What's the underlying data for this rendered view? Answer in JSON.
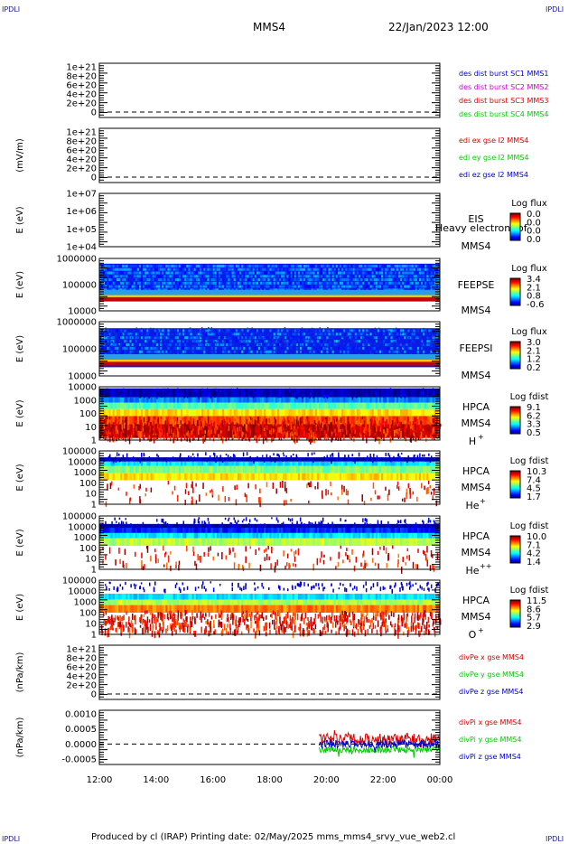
{
  "header": {
    "corner_label": "IPDLI",
    "spacecraft": "MMS4",
    "datetime": "22/Jan/2023 12:00"
  },
  "footer": {
    "text": "Produced by cl (IRAP)   Printing date: 02/May/2025   mms_mms4_srvy_vue_web2.cl"
  },
  "colors": {
    "red": "#dd0000",
    "green": "#00cc00",
    "blue": "#0000cc",
    "magenta": "#cc00cc"
  },
  "chart_data": [
    {
      "type": "line",
      "panel": "des-dist-burst",
      "ylabel": "",
      "yticks": [
        "1e+21",
        "8e+20",
        "6e+20",
        "4e+20",
        "2e+20",
        "0"
      ],
      "ylim": [
        -2e+20,
        1.1e+21
      ],
      "legend": [
        {
          "name": "des dist burst SC1 MMS1",
          "color": "#0000cc"
        },
        {
          "name": "des dist burst SC2 MMS2",
          "color": "#cc00cc"
        },
        {
          "name": "des dist burst SC3 MMS3",
          "color": "#dd0000"
        },
        {
          "name": "des dist burst SC4 MMS4",
          "color": "#00cc00"
        }
      ],
      "reference_line": 0,
      "series": []
    },
    {
      "type": "line",
      "panel": "edi-e-gse",
      "ylabel": "(mV/m)",
      "yticks": [
        "1e+21",
        "8e+20",
        "6e+20",
        "4e+20",
        "2e+20",
        "0"
      ],
      "ylim": [
        -2e+20,
        1.1e+21
      ],
      "legend": [
        {
          "name": "edi ex gse l2 MMS4",
          "color": "#dd0000"
        },
        {
          "name": "edi ey gse l2 MMS4",
          "color": "#00cc00"
        },
        {
          "name": "edi ez gse l2 MMS4",
          "color": "#0000cc"
        }
      ],
      "reference_line": 0,
      "series": []
    },
    {
      "type": "heatmap",
      "panel": "eis",
      "ylabel": "E (eV)",
      "yticks": [
        "1e+07",
        "1e+06",
        "1e+05",
        "1e+04"
      ],
      "scale": "log",
      "instrument": [
        "EIS",
        "MMS4"
      ],
      "overlay_text": "Heavy electron tof",
      "colorbar": {
        "title": "Log flux",
        "ticks": [
          "0.0",
          "0.0",
          "0.0",
          "0.0"
        ]
      },
      "fill": "none"
    },
    {
      "type": "heatmap",
      "panel": "feeps-e",
      "ylabel": "E (eV)",
      "yticks": [
        "1000000",
        "100000",
        "10000"
      ],
      "scale": "log",
      "instrument": [
        "FEEPSE",
        "MMS4"
      ],
      "colorbar": {
        "title": "Log flux",
        "ticks": [
          "3.4",
          "2.1",
          "0.8",
          "-0.6"
        ]
      },
      "fill": "feeps_e"
    },
    {
      "type": "heatmap",
      "panel": "feeps-i",
      "ylabel": "E (eV)",
      "yticks": [
        "1000000",
        "100000",
        "10000"
      ],
      "scale": "log",
      "instrument": [
        "FEEPSI",
        "MMS4"
      ],
      "colorbar": {
        "title": "Log flux",
        "ticks": [
          "3.0",
          "2.1",
          "1.2",
          "0.2"
        ]
      },
      "fill": "feeps_i"
    },
    {
      "type": "heatmap",
      "panel": "hpca-h",
      "ylabel": "E (eV)",
      "yticks": [
        "10000",
        "1000",
        "100",
        "10",
        "1"
      ],
      "scale": "log",
      "instrument": [
        "HPCA",
        "MMS4",
        "H",
        "+"
      ],
      "colorbar": {
        "title": "Log fdist",
        "ticks": [
          "9.1",
          "6.2",
          "3.3",
          "0.5"
        ]
      },
      "fill": "hpca_h"
    },
    {
      "type": "heatmap",
      "panel": "hpca-he1",
      "ylabel": "E (eV)",
      "yticks": [
        "100000",
        "10000",
        "1000",
        "100",
        "10",
        "1"
      ],
      "scale": "log",
      "instrument": [
        "HPCA",
        "MMS4",
        "He",
        "+"
      ],
      "colorbar": {
        "title": "Log fdist",
        "ticks": [
          "10.3",
          "7.4",
          "4.5",
          "1.7"
        ]
      },
      "fill": "hpca_he1"
    },
    {
      "type": "heatmap",
      "panel": "hpca-he2",
      "ylabel": "E (eV)",
      "yticks": [
        "100000",
        "10000",
        "1000",
        "100",
        "10",
        "1"
      ],
      "scale": "log",
      "instrument": [
        "HPCA",
        "MMS4",
        "He",
        "++"
      ],
      "colorbar": {
        "title": "Log fdist",
        "ticks": [
          "10.0",
          "7.1",
          "4.2",
          "1.4"
        ]
      },
      "fill": "hpca_he2"
    },
    {
      "type": "heatmap",
      "panel": "hpca-o",
      "ylabel": "E (eV)",
      "yticks": [
        "100000",
        "10000",
        "1000",
        "100",
        "10",
        "1"
      ],
      "scale": "log",
      "instrument": [
        "HPCA",
        "MMS4",
        "O",
        "+"
      ],
      "colorbar": {
        "title": "Log fdist",
        "ticks": [
          "11.5",
          "8.6",
          "5.7",
          "2.9"
        ]
      },
      "fill": "hpca_o"
    },
    {
      "type": "line",
      "panel": "divpe",
      "ylabel": "(nPa/km)",
      "yticks": [
        "1e+21",
        "8e+20",
        "6e+20",
        "4e+20",
        "2e+20",
        "0"
      ],
      "ylim": [
        -2e+20,
        1.1e+21
      ],
      "legend": [
        {
          "name": "divPe x gse MMS4",
          "color": "#dd0000"
        },
        {
          "name": "divPe y gse MMS4",
          "color": "#00cc00"
        },
        {
          "name": "divPe z gse MMS4",
          "color": "#0000cc"
        }
      ],
      "reference_line": 0,
      "series": []
    },
    {
      "type": "line",
      "panel": "divpi",
      "ylabel": "(nPa/km)",
      "yticks": [
        "0.0010",
        "0.0005",
        "0.0000",
        "-0.0005"
      ],
      "ylim": [
        -0.00075,
        0.00125
      ],
      "legend": [
        {
          "name": "divPi x gse MMS4",
          "color": "#dd0000"
        },
        {
          "name": "divPi y gse MMS4",
          "color": "#00cc00"
        },
        {
          "name": "divPi z gse MMS4",
          "color": "#0000cc"
        }
      ],
      "reference_line": 0,
      "data_start": "19:45",
      "series": [
        {
          "name": "divPi x gse MMS4",
          "color": "#dd0000",
          "mean": 0.0002,
          "spread": 0.0002
        },
        {
          "name": "divPi y gse MMS4",
          "color": "#00cc00",
          "mean": -0.0002,
          "spread": 0.00012
        },
        {
          "name": "divPi z gse MMS4",
          "color": "#0000cc",
          "mean": 0.0,
          "spread": 0.00015
        }
      ]
    }
  ],
  "x_axis": {
    "ticks": [
      "12:00",
      "14:00",
      "16:00",
      "18:00",
      "20:00",
      "22:00",
      "00:00"
    ]
  }
}
